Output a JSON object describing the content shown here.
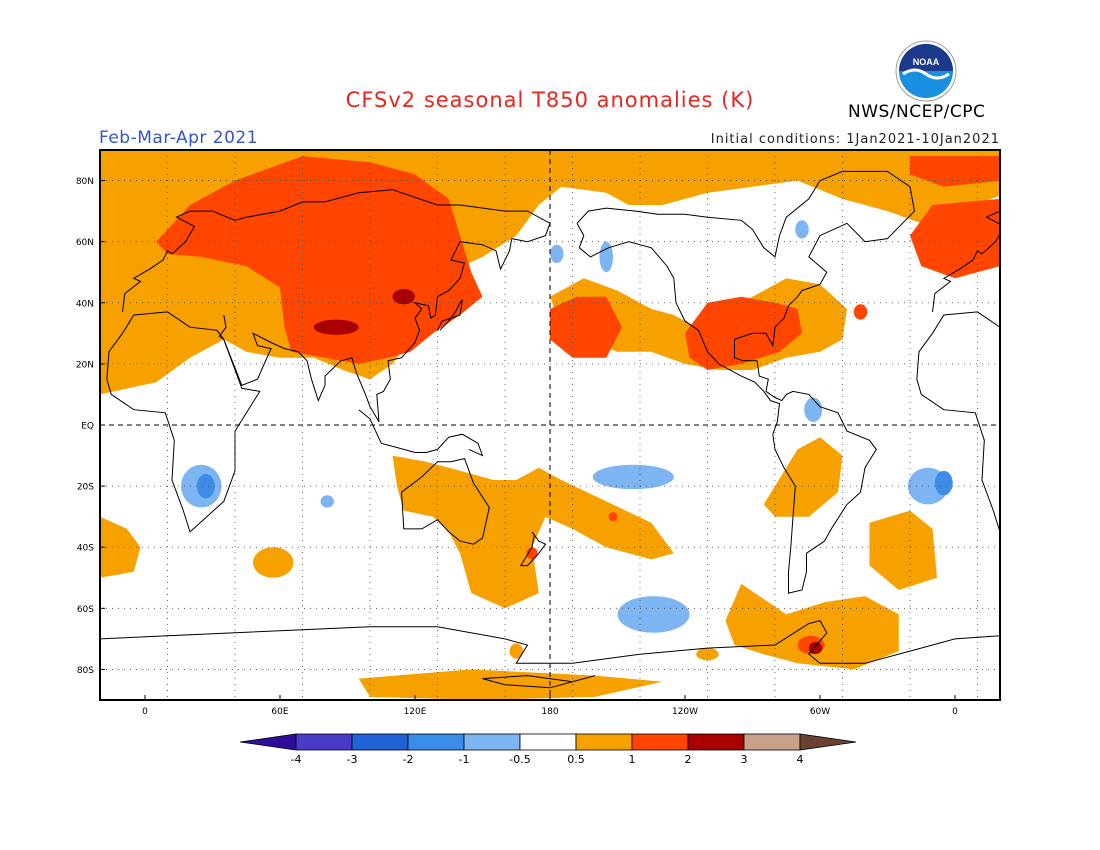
{
  "header": {
    "title": "CFSv2 seasonal T850 anomalies (K)",
    "period": "Feb-Mar-Apr 2021",
    "initial_conditions": "Initial conditions: 1Jan2021-10Jan2021",
    "agency": "NWS/NCEP/CPC",
    "logo_text": "NOAA"
  },
  "colors": {
    "title": "#e8261d",
    "period": "#3355cc",
    "logo_ring": "#1a8fe0",
    "logo_center": "#1c3a8c"
  },
  "map": {
    "lon_labels": [
      "0",
      "60E",
      "120E",
      "180",
      "120W",
      "60W",
      "0"
    ],
    "lat_labels": [
      "80N",
      "60N",
      "40N",
      "20N",
      "EQ",
      "20S",
      "40S",
      "60S",
      "80S"
    ],
    "gridlines": "dotted every 30 degrees",
    "reference_lines": "dashed equator and dateline"
  },
  "colorbar": {
    "labels": [
      "-4",
      "-3",
      "-2",
      "-1",
      "-0.5",
      "0.5",
      "1",
      "2",
      "3",
      "4"
    ],
    "colors": [
      "#2e0d99",
      "#4a3ac8",
      "#1f63d6",
      "#3c8de8",
      "#7db4f2",
      "#ffffff",
      "#f7a100",
      "#ff4500",
      "#a80000",
      "#c8a08c",
      "#6b4232"
    ]
  },
  "anomaly_colors": {
    "warm_05_1": "#f7a100",
    "warm_1_2": "#ff4500",
    "warm_2_3": "#a80000",
    "cool_05_1": "#7db4f2",
    "cool_1_2": "#3c8de8"
  }
}
